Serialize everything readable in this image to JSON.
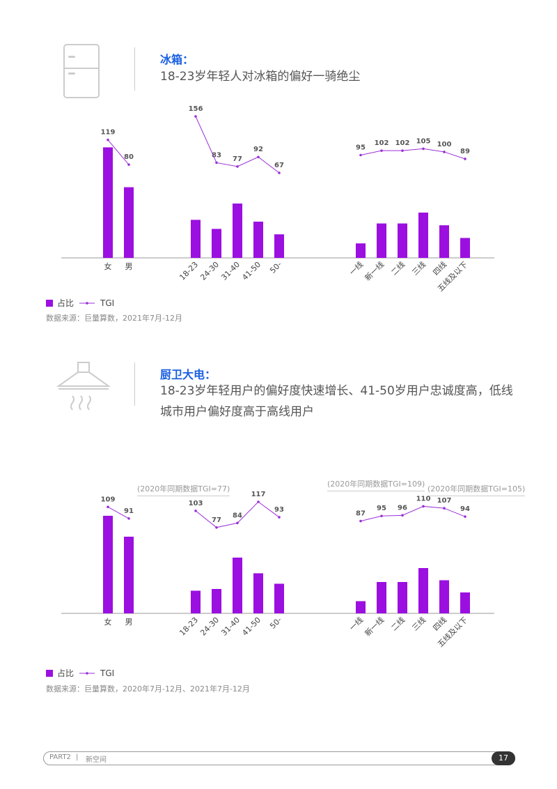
{
  "section1": {
    "title": "冰箱：",
    "subtitle": "18-23岁年轻人对冰箱的偏好一骑绝尘",
    "source": "数据来源：巨量算数，2021年7月-12月"
  },
  "section2": {
    "title": "厨卫大电：",
    "subtitle_line1": "18-23岁年轻用户的偏好度快速增长、41-50岁用户忠诚度高，低线",
    "subtitle_line2": "城市用户偏好度高于高线用户",
    "source": "数据来源：巨量算数，2020年7月-12月、2021年7月-12月",
    "notes": [
      "(2020年同期数据TGI=77)",
      "(2020年同期数据TGI=109)",
      "(2020年同期数据TGI=105)"
    ]
  },
  "legend": {
    "share": "占比",
    "tgi": "TGI"
  },
  "colors": {
    "bar": "#9b0fe0",
    "line": "#9b30d9"
  },
  "footer": {
    "part": "PART2",
    "sep": "|",
    "section": "新空间",
    "page": "17"
  },
  "chart_data": [
    {
      "type": "bar+line",
      "title": "冰箱",
      "groups": [
        {
          "categories": [
            "女",
            "男"
          ],
          "share_pct": [
            61,
            39
          ],
          "tgi": [
            119,
            80
          ]
        },
        {
          "categories": [
            "18-23",
            "24-30",
            "31-40",
            "41-50",
            "50-"
          ],
          "share_pct": [
            21,
            16,
            30,
            20,
            13
          ],
          "tgi": [
            156,
            83,
            77,
            92,
            67
          ]
        },
        {
          "categories": [
            "一线",
            "新一线",
            "二线",
            "三线",
            "四线",
            "五线及以下"
          ],
          "share_pct": [
            8,
            19,
            19,
            25,
            18,
            11
          ],
          "tgi": [
            95,
            102,
            102,
            105,
            100,
            89
          ]
        }
      ]
    },
    {
      "type": "bar+line",
      "title": "厨卫大电",
      "groups": [
        {
          "categories": [
            "女",
            "男"
          ],
          "share_pct": [
            56,
            44
          ],
          "tgi": [
            109,
            91
          ]
        },
        {
          "categories": [
            "18-23",
            "24-30",
            "31-40",
            "41-50",
            "50-"
          ],
          "share_pct": [
            13,
            14,
            32,
            23,
            17
          ],
          "tgi": [
            103,
            77,
            84,
            117,
            93
          ]
        },
        {
          "categories": [
            "一线",
            "新一线",
            "二线",
            "三线",
            "四线",
            "五线及以下"
          ],
          "share_pct": [
            7,
            18,
            18,
            26,
            19,
            12
          ],
          "tgi": [
            87,
            95,
            96,
            110,
            107,
            94
          ]
        }
      ]
    }
  ]
}
